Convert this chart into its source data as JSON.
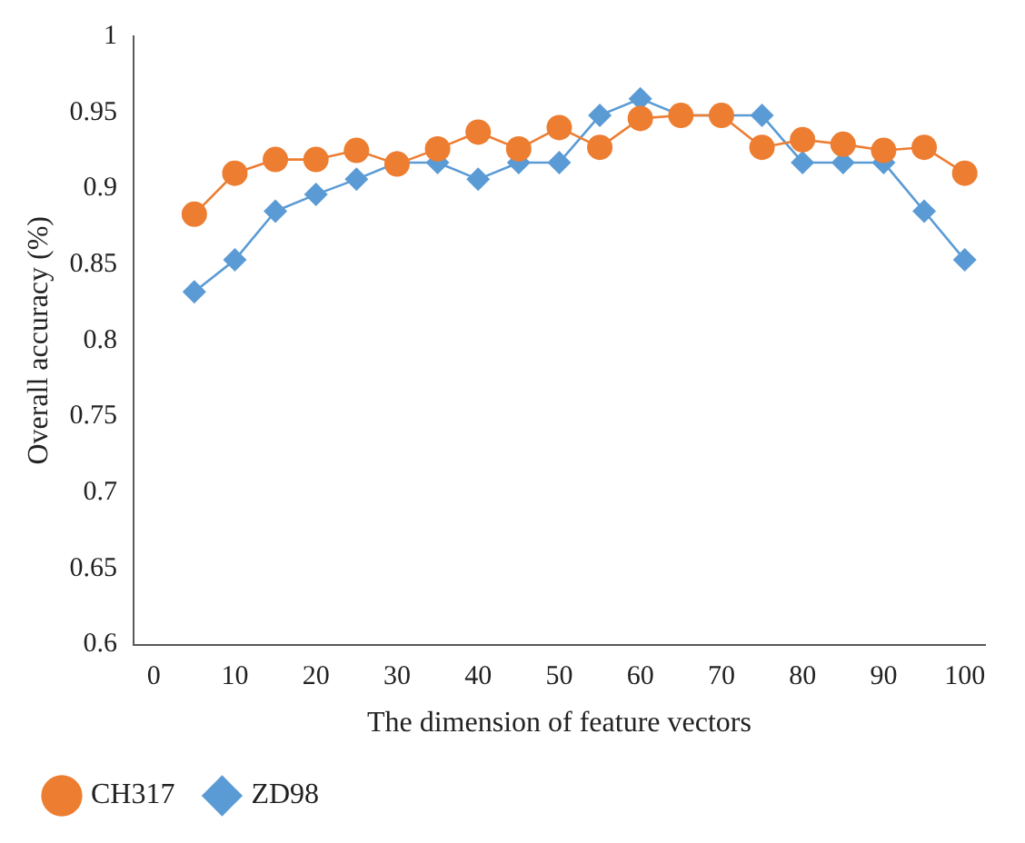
{
  "chart_data": {
    "type": "line",
    "xlabel": "The dimension of feature vectors",
    "ylabel": "Overall accuracy (%)",
    "x": [
      5,
      10,
      15,
      20,
      25,
      30,
      35,
      40,
      45,
      50,
      55,
      60,
      65,
      70,
      75,
      80,
      85,
      90,
      95,
      100
    ],
    "series": [
      {
        "name": "ZD98",
        "color": "#5b9bd5",
        "marker": "diamond",
        "values": [
          0.832,
          0.853,
          0.885,
          0.896,
          0.906,
          0.917,
          0.917,
          0.906,
          0.917,
          0.917,
          0.948,
          0.959,
          0.948,
          0.948,
          0.948,
          0.917,
          0.917,
          0.917,
          0.885,
          0.853
        ]
      },
      {
        "name": "CH317",
        "color": "#ed7d31",
        "marker": "circle",
        "values": [
          0.883,
          0.91,
          0.919,
          0.919,
          0.925,
          0.916,
          0.926,
          0.937,
          0.926,
          0.94,
          0.927,
          0.946,
          0.948,
          0.948,
          0.927,
          0.932,
          0.929,
          0.925,
          0.927,
          0.91
        ]
      }
    ],
    "xlim": [
      -2.5,
      102.5
    ],
    "xticks": [
      0,
      10,
      20,
      30,
      40,
      50,
      60,
      70,
      80,
      90,
      100
    ],
    "ylim": [
      0.6,
      1
    ],
    "yticks": [
      0.6,
      0.65,
      0.7,
      0.75,
      0.8,
      0.85,
      0.9,
      0.95,
      1
    ],
    "grid": false,
    "legend": "bottom left"
  }
}
